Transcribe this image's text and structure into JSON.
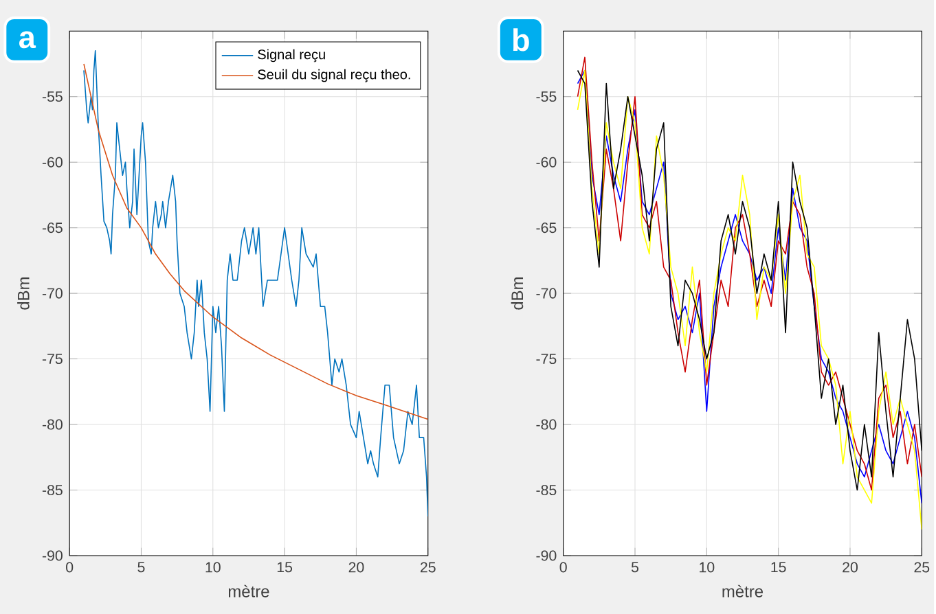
{
  "chart_data": [
    {
      "type": "line",
      "annotations": [
        "a"
      ],
      "xlabel": "mètre",
      "ylabel": "dBm",
      "xlim": [
        0,
        25
      ],
      "ylim": [
        -90,
        -50
      ],
      "xticks": [
        0,
        5,
        10,
        15,
        20,
        25
      ],
      "yticks": [
        -90,
        -85,
        -80,
        -75,
        -70,
        -65,
        -60,
        -55
      ],
      "grid": true,
      "legend": "top right",
      "series": [
        {
          "name": "Signal reçu",
          "color": "#0072bd",
          "x": [
            1.0,
            1.2,
            1.3,
            1.5,
            1.6,
            1.7,
            1.8,
            2.0,
            2.2,
            2.4,
            2.6,
            2.8,
            2.9,
            3.0,
            3.2,
            3.3,
            3.5,
            3.7,
            3.9,
            4.0,
            4.2,
            4.4,
            4.5,
            4.7,
            4.9,
            5.0,
            5.1,
            5.3,
            5.5,
            5.7,
            5.8,
            6.0,
            6.2,
            6.4,
            6.5,
            6.7,
            6.9,
            7.2,
            7.4,
            7.5,
            7.7,
            8.0,
            8.2,
            8.5,
            8.7,
            8.9,
            9.0,
            9.2,
            9.4,
            9.6,
            9.8,
            10.0,
            10.2,
            10.4,
            10.6,
            10.8,
            11.0,
            11.2,
            11.4,
            11.7,
            12.0,
            12.2,
            12.5,
            12.8,
            13.0,
            13.2,
            13.5,
            13.8,
            14.5,
            15.0,
            15.5,
            15.8,
            16.0,
            16.2,
            16.5,
            17.0,
            17.2,
            17.5,
            17.8,
            18.0,
            18.3,
            18.5,
            18.8,
            19.0,
            19.3,
            19.6,
            20.0,
            20.2,
            20.5,
            20.8,
            21.0,
            21.2,
            21.5,
            21.7,
            22.0,
            22.3,
            22.6,
            23.0,
            23.3,
            23.6,
            23.9,
            24.2,
            24.4,
            24.7,
            24.9,
            25.0
          ],
          "values": [
            -53,
            -56,
            -57,
            -55,
            -56,
            -53,
            -51.5,
            -57,
            -61,
            -64.5,
            -65,
            -66,
            -67,
            -64,
            -61,
            -57,
            -59,
            -61,
            -60,
            -62,
            -65,
            -63,
            -59,
            -64,
            -60,
            -58,
            -57,
            -60,
            -66,
            -67,
            -65,
            -63,
            -65,
            -64,
            -63,
            -65,
            -63,
            -61,
            -63,
            -66,
            -70,
            -71,
            -73,
            -75,
            -73,
            -69,
            -71,
            -69,
            -73,
            -75,
            -79,
            -71,
            -73,
            -71,
            -74,
            -79,
            -69,
            -67,
            -69,
            -69,
            -66,
            -65,
            -67,
            -65,
            -67,
            -65,
            -71,
            -69,
            -69,
            -65,
            -69,
            -71,
            -69,
            -65,
            -67,
            -68,
            -67,
            -71,
            -71,
            -73,
            -77,
            -75,
            -76,
            -75,
            -77,
            -80,
            -81,
            -79,
            -81,
            -83,
            -82,
            -83,
            -84,
            -81,
            -77,
            -77,
            -81,
            -83,
            -82,
            -79,
            -80,
            -77,
            -81,
            -81,
            -84,
            -87
          ]
        },
        {
          "name": "Seuil du signal reçu theo.",
          "color": "#d95319",
          "x": [
            1,
            2,
            3,
            4,
            5,
            6,
            7,
            8,
            10,
            12,
            14,
            16,
            18,
            20,
            22,
            25
          ],
          "values": [
            -52.5,
            -57.5,
            -61,
            -63.5,
            -65,
            -67,
            -68.5,
            -69.8,
            -71.8,
            -73.4,
            -74.7,
            -75.8,
            -76.9,
            -77.8,
            -78.5,
            -79.6
          ]
        }
      ]
    },
    {
      "type": "line",
      "annotations": [
        "b"
      ],
      "xlabel": "mètre",
      "ylabel": "dBm",
      "xlim": [
        0,
        25
      ],
      "ylim": [
        -90,
        -50
      ],
      "xticks": [
        0,
        5,
        10,
        15,
        20,
        25
      ],
      "yticks": [
        -90,
        -85,
        -80,
        -75,
        -70,
        -65,
        -60,
        -55
      ],
      "grid": true,
      "x": [
        1,
        1.5,
        2,
        2.5,
        3,
        3.5,
        4,
        4.5,
        5,
        5.5,
        6,
        6.5,
        7,
        7.5,
        8,
        8.5,
        9,
        9.5,
        10,
        10.5,
        11,
        11.5,
        12,
        12.5,
        13,
        13.5,
        14,
        14.5,
        15,
        15.5,
        16,
        16.5,
        17,
        17.5,
        18,
        18.5,
        19,
        19.5,
        20,
        20.5,
        21,
        21.5,
        22,
        22.5,
        23,
        23.5,
        24,
        24.5,
        25
      ],
      "series": [
        {
          "color": "#0000ff",
          "values": [
            -54,
            -53,
            -61,
            -64,
            -58,
            -61,
            -63,
            -59,
            -56,
            -63,
            -64,
            -62,
            -60,
            -70,
            -72,
            -71,
            -73,
            -70,
            -79,
            -71,
            -68,
            -66,
            -64,
            -66,
            -67,
            -69,
            -68,
            -70,
            -65,
            -69,
            -62,
            -65,
            -66,
            -71,
            -75,
            -76,
            -78,
            -79,
            -81,
            -83,
            -84,
            -82,
            -80,
            -82,
            -83,
            -81,
            -79,
            -81,
            -86
          ]
        },
        {
          "color": "#cc0000",
          "values": [
            -55,
            -52,
            -60,
            -66,
            -59,
            -62,
            -66,
            -60,
            -55,
            -64,
            -65,
            -63,
            -68,
            -69,
            -73,
            -76,
            -72,
            -69,
            -77,
            -73,
            -69,
            -71,
            -65,
            -64,
            -67,
            -71,
            -69,
            -71,
            -66,
            -67,
            -63,
            -64,
            -68,
            -70,
            -76,
            -77,
            -76,
            -78,
            -80,
            -82,
            -83,
            -85,
            -78,
            -77,
            -81,
            -79,
            -83,
            -80,
            -84
          ]
        },
        {
          "color": "#ffff00",
          "values": [
            -56,
            -53,
            -62,
            -67,
            -57,
            -60,
            -62,
            -55,
            -57,
            -65,
            -67,
            -58,
            -61,
            -68,
            -70,
            -74,
            -68,
            -73,
            -76,
            -70,
            -67,
            -65,
            -66,
            -61,
            -64,
            -72,
            -68,
            -69,
            -64,
            -70,
            -63,
            -61,
            -67,
            -68,
            -74,
            -75,
            -77,
            -83,
            -79,
            -84,
            -85,
            -86,
            -79,
            -76,
            -80,
            -78,
            -80,
            -82,
            -88
          ]
        },
        {
          "color": "#000000",
          "values": [
            -53,
            -54,
            -63,
            -68,
            -54,
            -62,
            -59,
            -55,
            -58,
            -61,
            -66,
            -59,
            -57,
            -71,
            -74,
            -69,
            -70,
            -72,
            -75,
            -73,
            -66,
            -64,
            -67,
            -63,
            -65,
            -70,
            -67,
            -69,
            -63,
            -73,
            -60,
            -63,
            -65,
            -71,
            -78,
            -75,
            -80,
            -77,
            -82,
            -85,
            -80,
            -84,
            -73,
            -79,
            -84,
            -78,
            -72,
            -75,
            -82
          ]
        }
      ]
    }
  ]
}
